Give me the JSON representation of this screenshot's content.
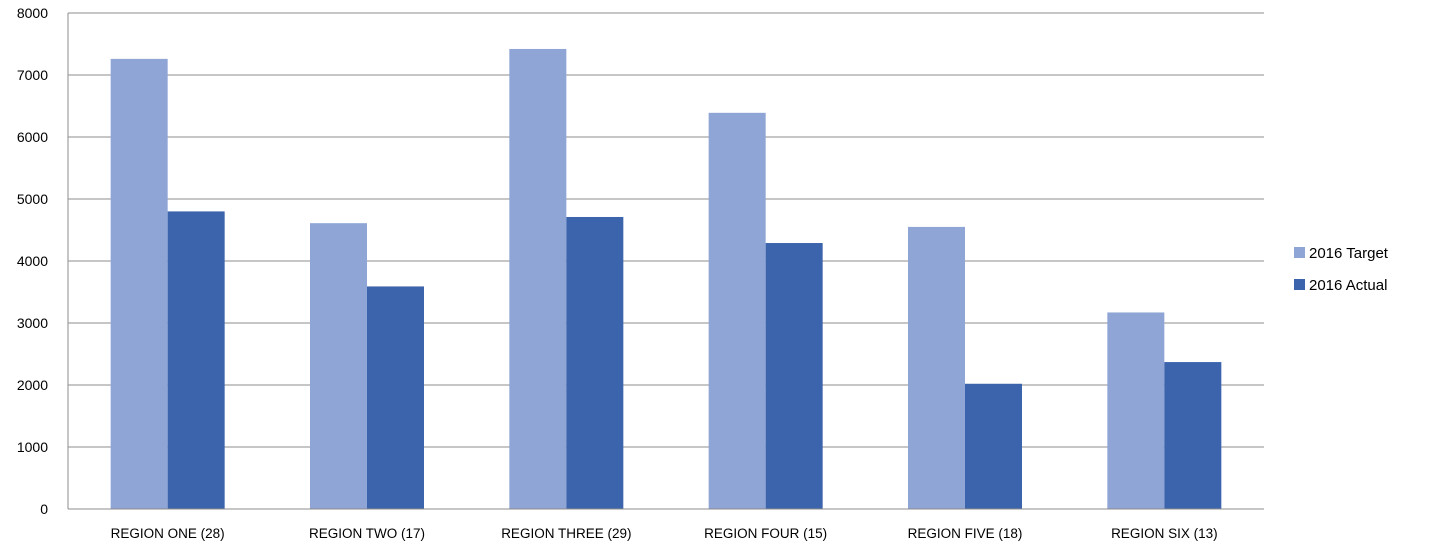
{
  "chart_data": {
    "type": "bar",
    "title": "",
    "xlabel": "",
    "ylabel": "",
    "ylim": [
      0,
      8000
    ],
    "yticks": [
      0,
      1000,
      2000,
      3000,
      4000,
      5000,
      6000,
      7000,
      8000
    ],
    "grid": true,
    "legend_position": "right",
    "categories": [
      "REGION ONE (28)",
      "REGION TWO (17)",
      "REGION THREE (29)",
      "REGION FOUR (15)",
      "REGION FIVE (18)",
      "REGION SIX (13)"
    ],
    "series": [
      {
        "name": "2016 Target",
        "color": "#8EA5D5",
        "values": [
          7260,
          4610,
          7420,
          6390,
          4550,
          3170
        ]
      },
      {
        "name": "2016 Actual",
        "color": "#3C64AD",
        "values": [
          4800,
          3590,
          4710,
          4290,
          2020,
          2370
        ]
      }
    ],
    "gridline_color": "#8C8C8C"
  }
}
